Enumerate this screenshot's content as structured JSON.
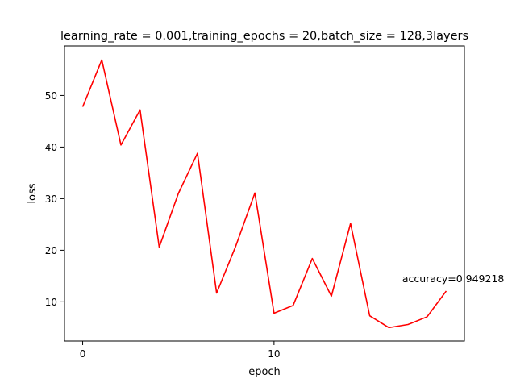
{
  "chart_data": {
    "type": "line",
    "title": "learning_rate = 0.001,training_epochs = 20,batch_size = 128,3layers",
    "xlabel": "epoch",
    "ylabel": "loss",
    "xlim": [
      -0.95,
      19.95
    ],
    "ylim": [
      2.4,
      59.6
    ],
    "x_ticks": [
      0,
      10
    ],
    "y_ticks": [
      10,
      20,
      30,
      40,
      50
    ],
    "grid": false,
    "legend": false,
    "series": [
      {
        "color": "#ff0000",
        "x": [
          0,
          1,
          2,
          3,
          4,
          5,
          6,
          7,
          8,
          9,
          10,
          11,
          12,
          13,
          14,
          15,
          16,
          17,
          18,
          19
        ],
        "values": [
          47.8,
          56.9,
          40.4,
          47.2,
          20.6,
          31.0,
          38.8,
          11.7,
          20.8,
          31.1,
          7.8,
          9.3,
          18.4,
          11.1,
          25.2,
          7.3,
          5.0,
          5.6,
          7.1,
          12.1
        ]
      }
    ],
    "annotations": [
      {
        "text": "accuracy=0.949218",
        "x": 16.7,
        "y": 13.8
      }
    ]
  }
}
